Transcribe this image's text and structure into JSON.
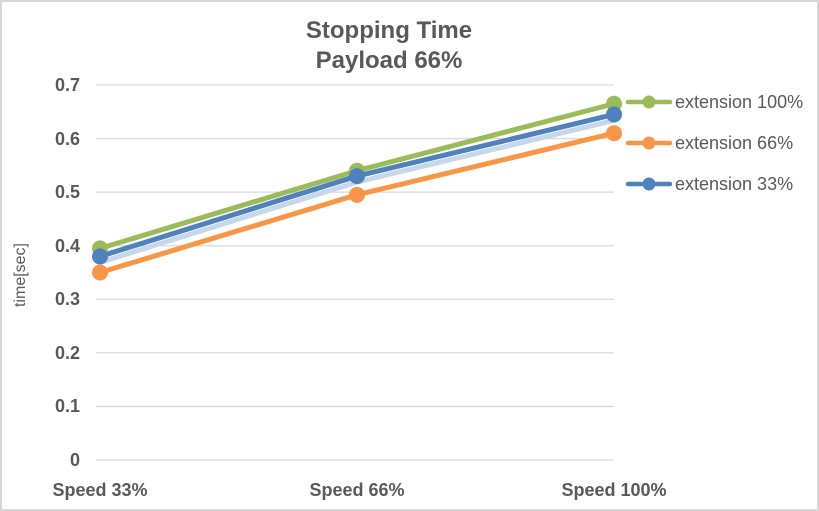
{
  "title": {
    "line1": "Stopping Time",
    "line2": "Payload 66%",
    "color": "#595959"
  },
  "y_axis": {
    "label": "time[sec]",
    "tick_labels": [
      "0",
      "0.1",
      "0.2",
      "0.3",
      "0.4",
      "0.5",
      "0.6",
      "0.7"
    ]
  },
  "x_axis": {
    "labels": [
      "Speed 33%",
      "Speed 66%",
      "Speed 100%"
    ]
  },
  "colors": {
    "text": "#595959",
    "gridline": "#d9d9d9",
    "frame_border": "#d7d7d7",
    "background": "#ffffff"
  },
  "chart_data": {
    "type": "line",
    "title": "Stopping Time / Payload 66%",
    "ylabel": "time[sec]",
    "categories": [
      "Speed 33%",
      "Speed 66%",
      "Speed 100%"
    ],
    "series": [
      {
        "name": "extension 100%",
        "color": "#9bbb59",
        "values": [
          0.395,
          0.54,
          0.665
        ]
      },
      {
        "name": "extension 66%",
        "color": "#f79646",
        "values": [
          0.35,
          0.495,
          0.61
        ]
      },
      {
        "name": "extension 33%",
        "color": "#4f81bd",
        "values": [
          0.38,
          0.53,
          0.645
        ],
        "shadow_color": "#c7d7eb"
      }
    ],
    "ylim": [
      0,
      0.7
    ],
    "yticks": [
      0,
      0.1,
      0.2,
      0.3,
      0.4,
      0.5,
      0.6,
      0.7
    ],
    "grid": true,
    "markers": true,
    "legend_position": "right"
  }
}
